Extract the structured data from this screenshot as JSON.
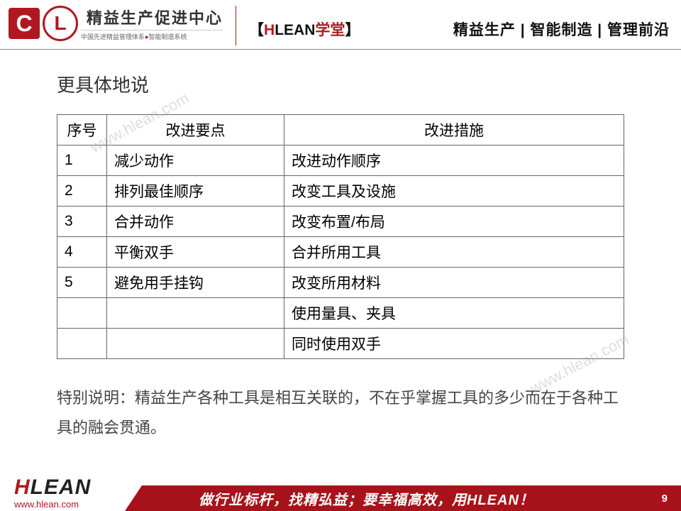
{
  "header": {
    "logo_center_text": "精益生产促进中心",
    "logo_sub_left": "中国先进精益管理体系",
    "logo_sub_right": "智能制造系统",
    "mid_bracket_l": "【",
    "mid_h": "H",
    "mid_lean": "LEAN",
    "mid_xuetang": "学堂",
    "mid_bracket_r": "】",
    "right": "精益生产 | 智能制造 | 管理前沿"
  },
  "content": {
    "title": "更具体地说",
    "table": {
      "columns": [
        "序号",
        "改进要点",
        "改进措施"
      ],
      "col_widths": [
        "70px",
        "250px",
        "auto"
      ],
      "rows": [
        [
          "1",
          "减少动作",
          "改进动作顺序"
        ],
        [
          "2",
          "排列最佳顺序",
          "改变工具及设施"
        ],
        [
          "3",
          "合并动作",
          "改变布置/布局"
        ],
        [
          "4",
          "平衡双手",
          "合并所用工具"
        ],
        [
          "5",
          "避免用手挂钩",
          "改变所用材料"
        ],
        [
          "",
          "",
          "使用量具、夹具"
        ],
        [
          "",
          "",
          "同时使用双手"
        ]
      ],
      "border_color": "#666666",
      "font_size": 21
    },
    "note": "特别说明：精益生产各种工具是相互关联的，不在乎掌握工具的多少而在于各种工具的融会贯通。"
  },
  "watermark": "www.hlean.com",
  "footer": {
    "slogan": "做行业标杆，找精弘益；要幸福高效，用HLEAN！",
    "logo_h": "H",
    "logo_rest": "LEAN",
    "url": "www.hlean.com",
    "page": "9",
    "bar_color": "#a8121a"
  }
}
